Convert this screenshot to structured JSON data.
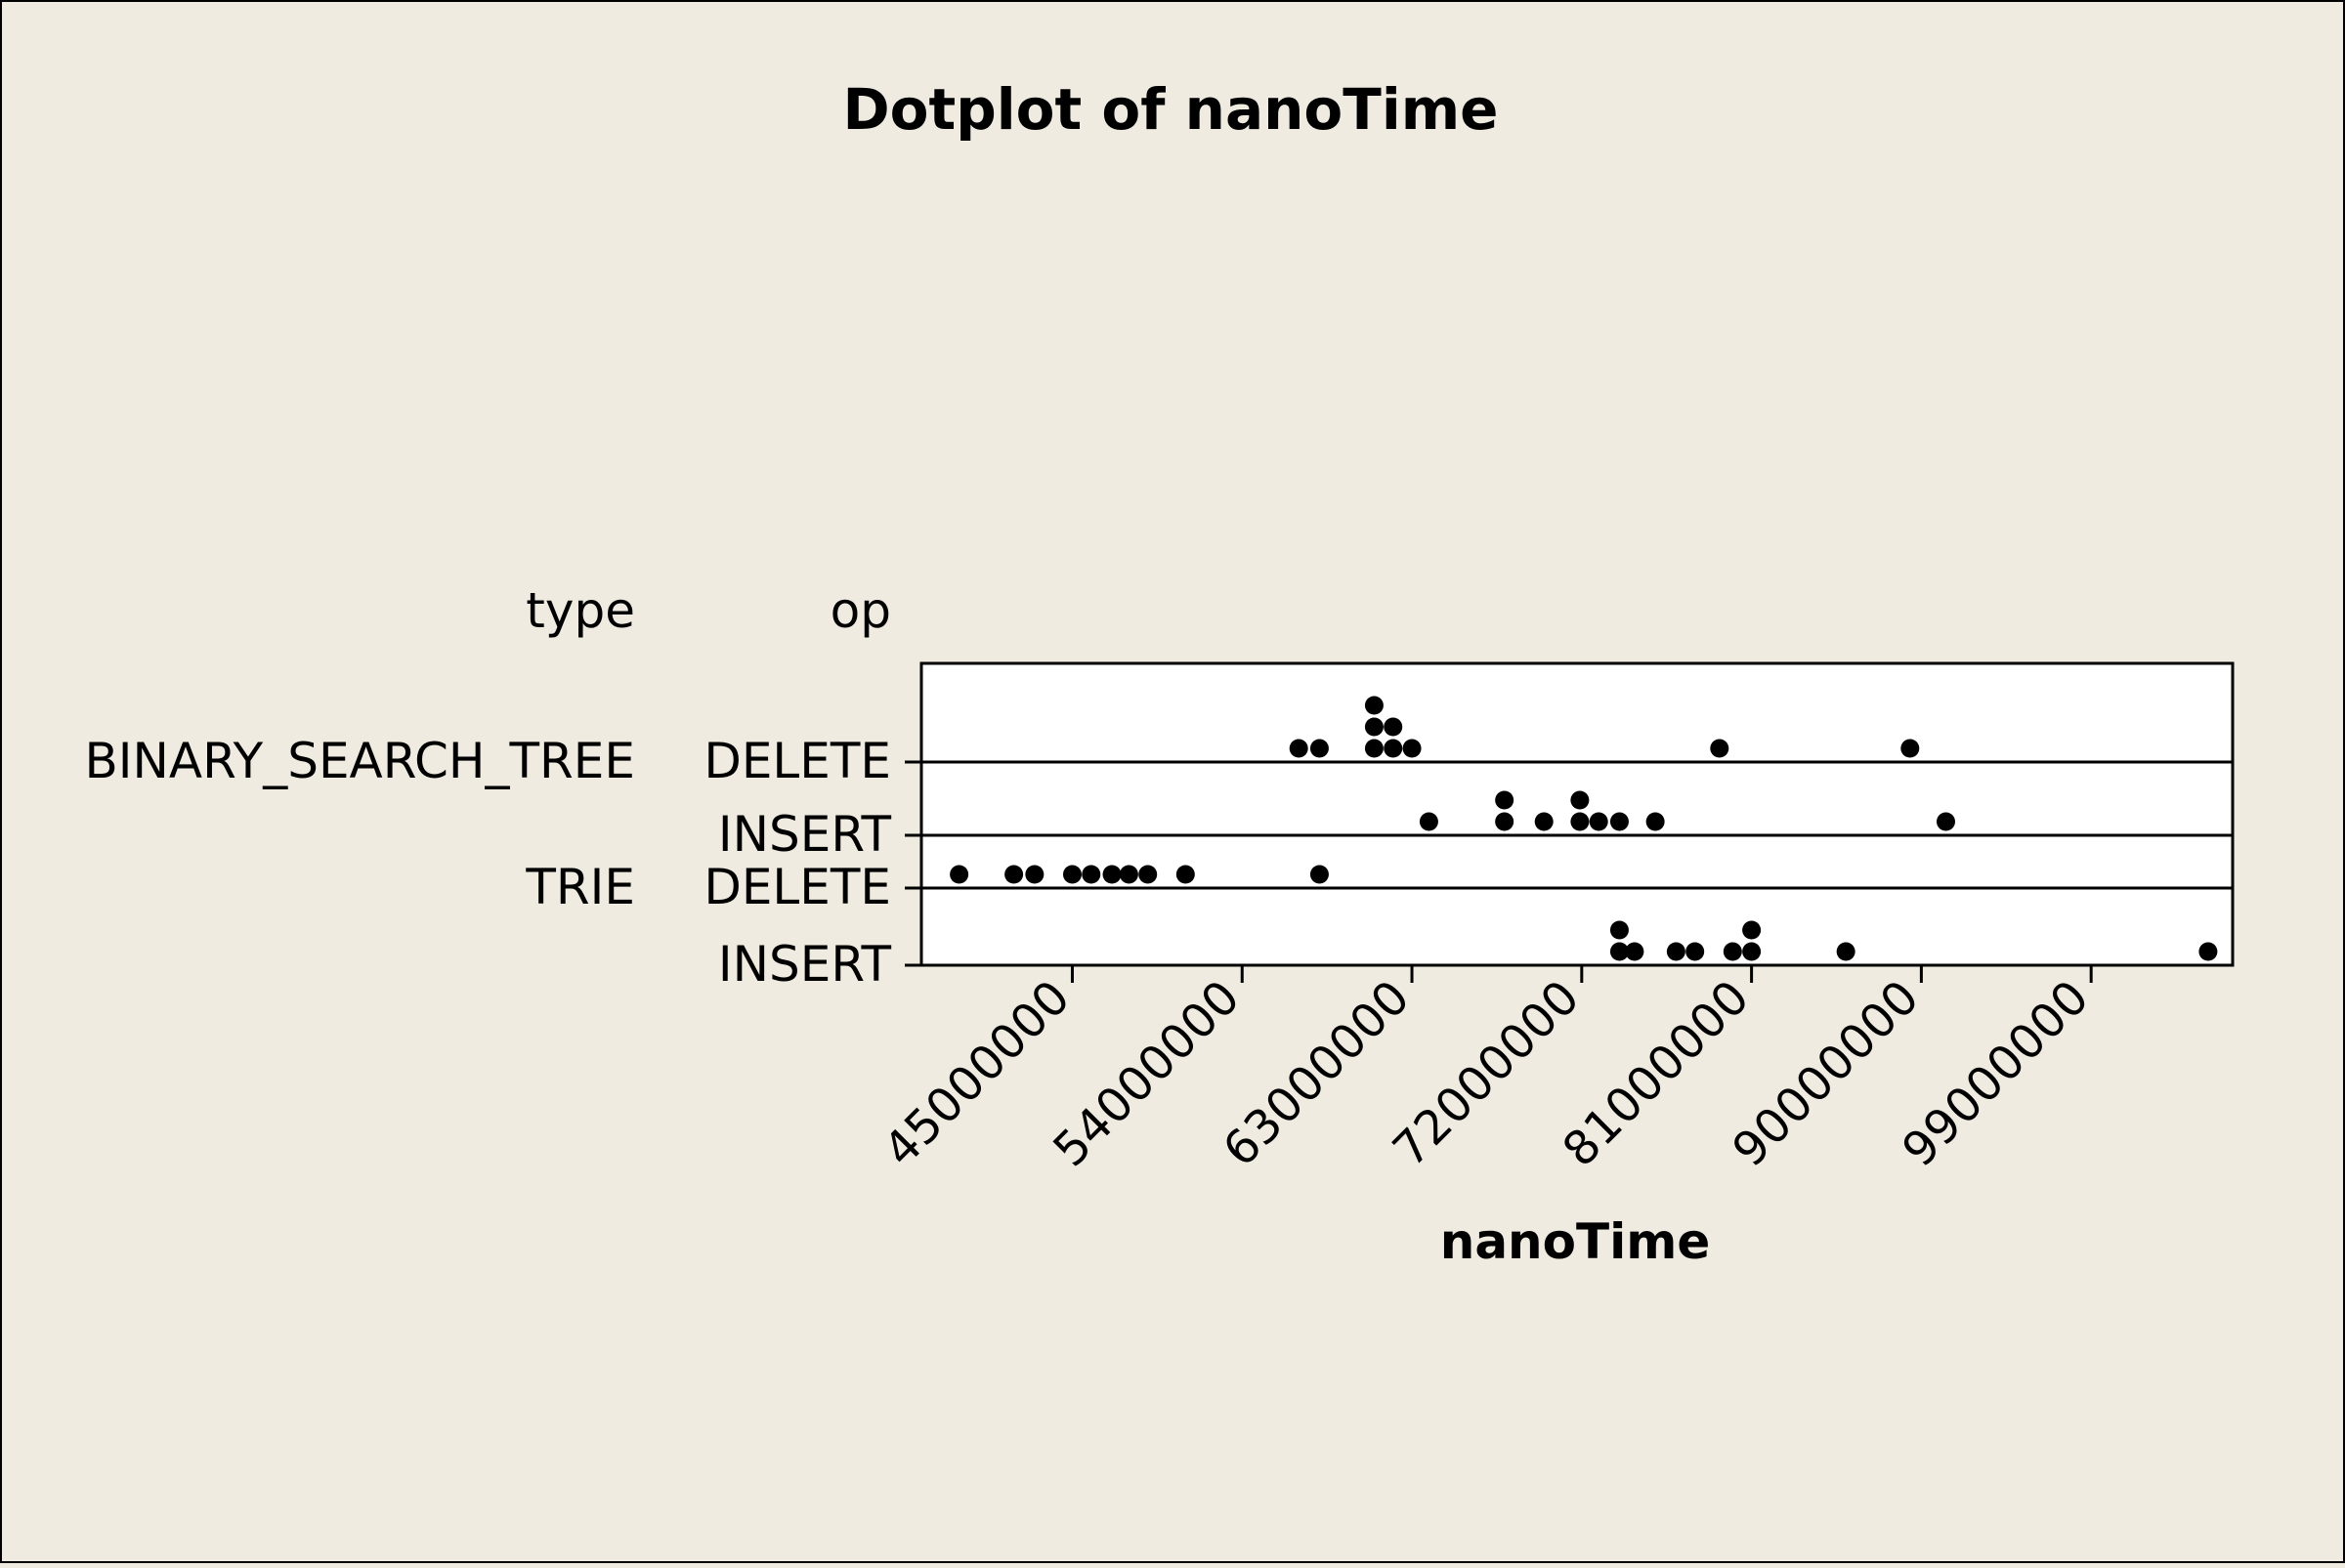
{
  "chart_data": {
    "type": "dotplot",
    "title": "Dotplot of nanoTime",
    "xlabel": "nanoTime",
    "group_headers": [
      "type",
      "op"
    ],
    "x_ticks": [
      45000000,
      54000000,
      63000000,
      72000000,
      81000000,
      90000000,
      99000000
    ],
    "xlim": [
      37000000,
      106500000
    ],
    "grid": false,
    "legend": "none",
    "dot_color": "#000000",
    "groups": [
      {
        "type": "BINARY_SEARCH_TREE",
        "op": "DELETE",
        "dots": [
          [
            57000000,
            1
          ],
          [
            58100000,
            1
          ],
          [
            61000000,
            1
          ],
          [
            61000000,
            2
          ],
          [
            61000000,
            3
          ],
          [
            62000000,
            1
          ],
          [
            62000000,
            2
          ],
          [
            63000000,
            1
          ],
          [
            79300000,
            1
          ],
          [
            89400000,
            1
          ]
        ]
      },
      {
        "type": "",
        "op": "INSERT",
        "dots": [
          [
            63900000,
            1
          ],
          [
            67900000,
            1
          ],
          [
            67900000,
            2
          ],
          [
            70000000,
            1
          ],
          [
            71900000,
            1
          ],
          [
            71900000,
            2
          ],
          [
            72900000,
            1
          ],
          [
            74000000,
            1
          ],
          [
            75900000,
            1
          ],
          [
            91300000,
            1
          ]
        ]
      },
      {
        "type": "TRIE",
        "op": "DELETE",
        "dots": [
          [
            39000000,
            1
          ],
          [
            41900000,
            1
          ],
          [
            43000000,
            1
          ],
          [
            45000000,
            1
          ],
          [
            46000000,
            1
          ],
          [
            47100000,
            1
          ],
          [
            48000000,
            1
          ],
          [
            49000000,
            1
          ],
          [
            51000000,
            1
          ],
          [
            58100000,
            1
          ]
        ]
      },
      {
        "type": "",
        "op": "INSERT",
        "dots": [
          [
            74000000,
            1
          ],
          [
            74000000,
            2
          ],
          [
            74800000,
            1
          ],
          [
            77000000,
            1
          ],
          [
            78000000,
            1
          ],
          [
            80000000,
            1
          ],
          [
            81000000,
            1
          ],
          [
            81000000,
            2
          ],
          [
            86000000,
            1
          ],
          [
            105200000,
            1
          ]
        ]
      }
    ]
  }
}
